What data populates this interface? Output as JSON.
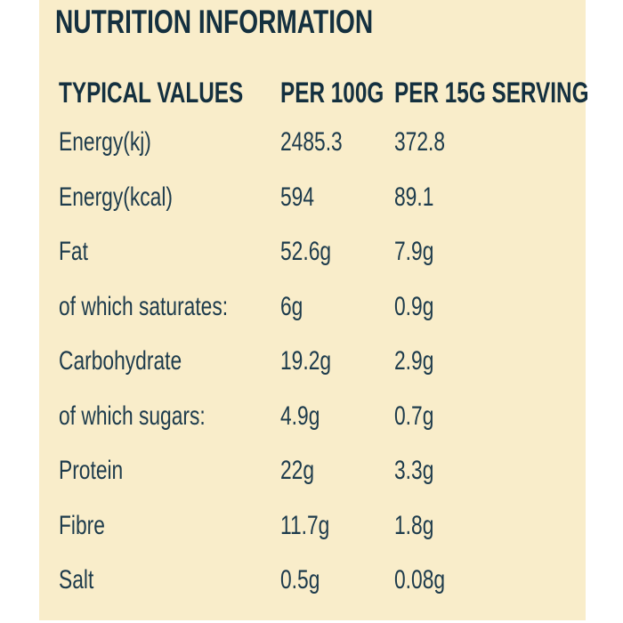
{
  "colors": {
    "page_background": "#ffffff",
    "panel_background": "#f9edca",
    "title_text": "#14303f",
    "body_text": "#1d3b4c"
  },
  "title": "NUTRITION INFORMATION",
  "table": {
    "headers": [
      "TYPICAL VALUES",
      "PER 100G",
      "PER 15G SERVING"
    ],
    "rows": [
      {
        "label": "Energy(kj)",
        "per_100g": "2485.3",
        "per_15g_serving": "372.8"
      },
      {
        "label": "Energy(kcal)",
        "per_100g": "594",
        "per_15g_serving": "89.1"
      },
      {
        "label": "Fat",
        "per_100g": "52.6g",
        "per_15g_serving": "7.9g"
      },
      {
        "label": "of which saturates:",
        "per_100g": "6g",
        "per_15g_serving": "0.9g"
      },
      {
        "label": "Carbohydrate",
        "per_100g": "19.2g",
        "per_15g_serving": "2.9g"
      },
      {
        "label": "of which sugars:",
        "per_100g": "4.9g",
        "per_15g_serving": "0.7g"
      },
      {
        "label": "Protein",
        "per_100g": "22g",
        "per_15g_serving": "3.3g"
      },
      {
        "label": "Fibre",
        "per_100g": "11.7g",
        "per_15g_serving": "1.8g"
      },
      {
        "label": "Salt",
        "per_100g": "0.5g",
        "per_15g_serving": "0.08g"
      }
    ]
  }
}
